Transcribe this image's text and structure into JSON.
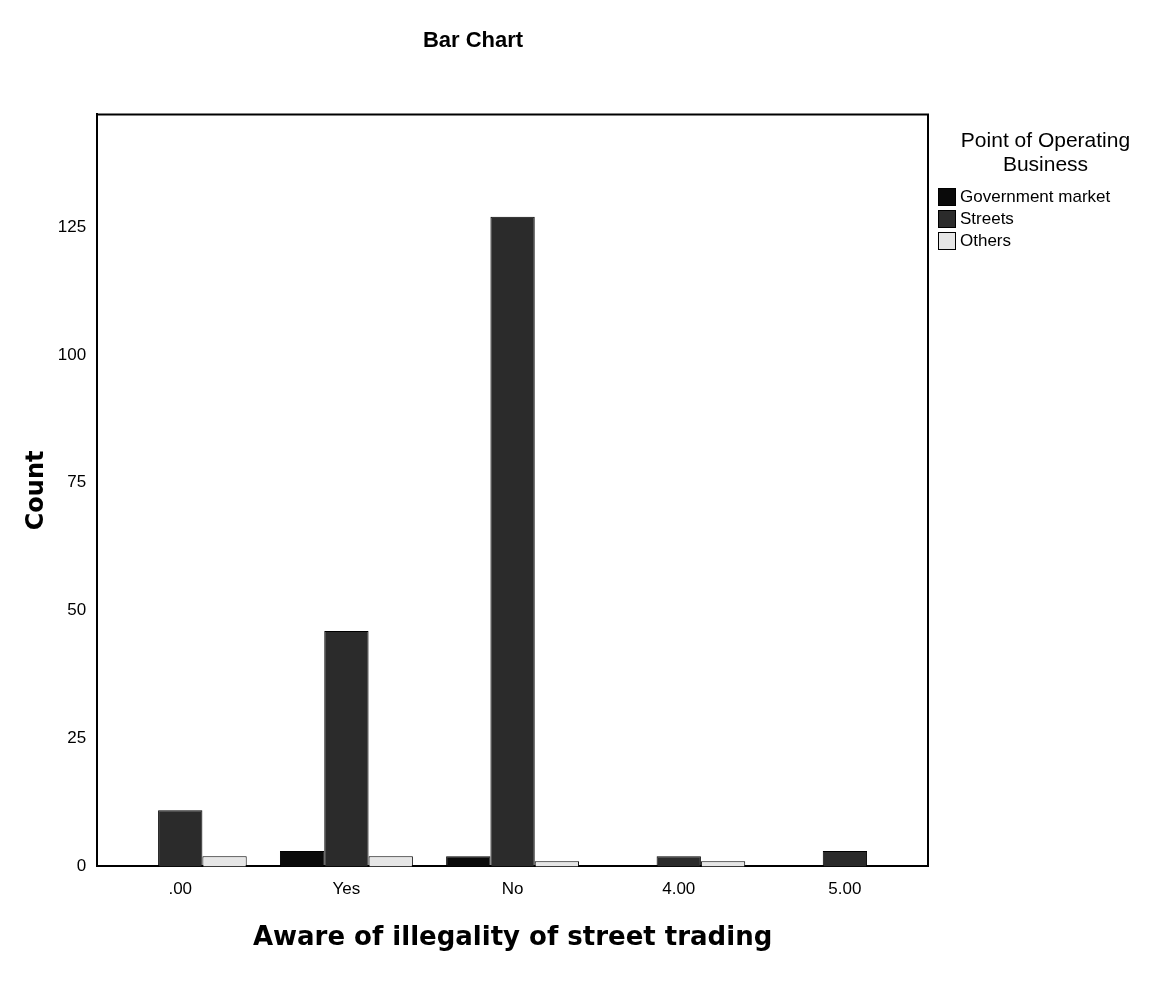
{
  "chart_data": {
    "type": "bar",
    "title": "Bar Chart",
    "xlabel": "Aware of illegality of street trading",
    "ylabel": "Count",
    "legend_title": "Point of Operating Business",
    "categories": [
      ".00",
      "Yes",
      "No",
      "4.00",
      "5.00"
    ],
    "series": [
      {
        "name": "Government market",
        "color": "#0a0a0a",
        "values": [
          0,
          3,
          2,
          0,
          0
        ]
      },
      {
        "name": "Streets",
        "color": "#2b2b2b",
        "values": [
          11,
          46,
          127,
          2,
          3
        ]
      },
      {
        "name": "Others",
        "color": "#e6e6e6",
        "values": [
          2,
          2,
          1,
          1,
          0
        ]
      }
    ],
    "ylim": [
      0,
      147
    ],
    "yticks": [
      0,
      25,
      50,
      75,
      100,
      125
    ],
    "grid": false,
    "legend": "right"
  }
}
